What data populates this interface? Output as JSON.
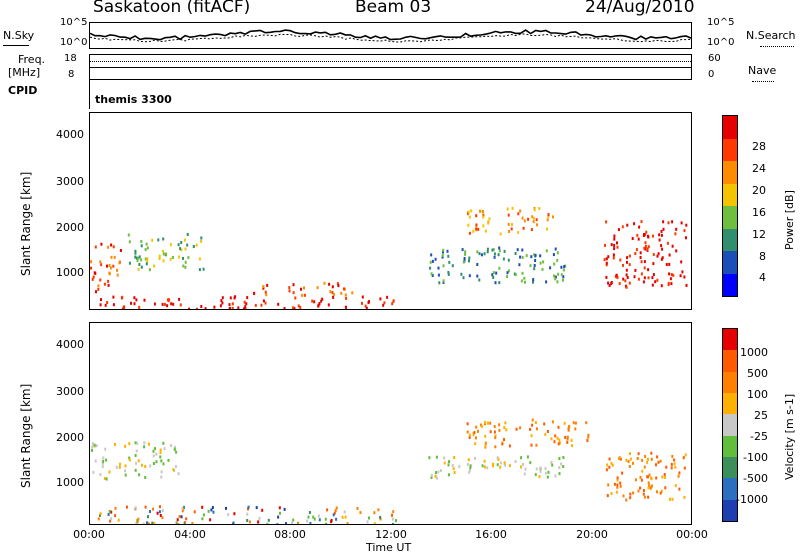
{
  "header": {
    "station": "Saskatoon (fitACF)",
    "beam": "Beam 03",
    "date": "24/Aug/2010"
  },
  "aux": {
    "nsky_label": "N.Sky",
    "nsearch_label": "N.Search",
    "scale_top_left": "10^5",
    "scale_bot_left": "10^0",
    "scale_top_right": "10^5",
    "scale_bot_right": "10^0",
    "freq_label_1": "Freq.",
    "freq_label_2": "[MHz]",
    "freq_top": "18",
    "freq_bot": "8",
    "nave_label": "Nave",
    "nave_top": "60",
    "nave_bot": "0",
    "cpid_label": "CPID",
    "cpid_value": "themis 3300"
  },
  "chart_data": [
    {
      "type": "heatmap",
      "title": "",
      "ylabel": "Slant Range [km]",
      "ylim": [
        180,
        4600
      ],
      "yticks": [
        "4000",
        "3000",
        "2000",
        "1000"
      ],
      "xlabel": "",
      "colorbar": {
        "label": "Power [dB]",
        "ticks": [
          "28",
          "24",
          "20",
          "16",
          "12",
          "8",
          "4"
        ],
        "colors": [
          "#0000ff",
          "#1a4fb8",
          "#2f8f6e",
          "#6fbf3f",
          "#f5c400",
          "#ff8c00",
          "#ff3a00",
          "#e60000"
        ]
      },
      "echo_bands": [
        {
          "t0": 0.3,
          "t1": 12.2,
          "r0": 200,
          "r1": 500,
          "level": 28
        },
        {
          "t0": 0.0,
          "t1": 1.2,
          "r0": 600,
          "r1": 1700,
          "level": 22
        },
        {
          "t0": 1.5,
          "t1": 4.5,
          "r0": 1100,
          "r1": 1900,
          "level": 12
        },
        {
          "t0": 6.5,
          "t1": 10.5,
          "r0": 500,
          "r1": 800,
          "level": 24
        },
        {
          "t0": 13.5,
          "t1": 19.0,
          "r0": 800,
          "r1": 1600,
          "level": 8
        },
        {
          "t0": 15.0,
          "t1": 18.5,
          "r0": 1900,
          "r1": 2500,
          "level": 20
        },
        {
          "t0": 20.5,
          "t1": 23.8,
          "r0": 700,
          "r1": 2200,
          "level": 26
        }
      ]
    },
    {
      "type": "heatmap",
      "title": "",
      "ylabel": "Slant Range [km]",
      "ylim": [
        180,
        4600
      ],
      "yticks": [
        "4000",
        "3000",
        "2000",
        "1000"
      ],
      "xlabel": "Time UT",
      "xticks": [
        "00:00",
        "04:00",
        "08:00",
        "12:00",
        "16:00",
        "20:00",
        "00:00"
      ],
      "colorbar": {
        "label": "Velocity [m s-1]",
        "ticks": [
          "1000",
          "500",
          "100",
          "25",
          "-25",
          "-100",
          "-500",
          "-1000"
        ],
        "colors": [
          "#1e3fb0",
          "#2a6fc0",
          "#3a8f5a",
          "#5fbf3a",
          "#c8c8c8",
          "#ffb000",
          "#ff8000",
          "#ff5a00",
          "#e60000"
        ]
      },
      "echo_bands": [
        {
          "t0": 0.3,
          "t1": 12.2,
          "r0": 200,
          "r1": 600,
          "level": "mixed"
        },
        {
          "t0": 0.0,
          "t1": 3.5,
          "r0": 1200,
          "r1": 2000,
          "level": 0
        },
        {
          "t0": 13.5,
          "t1": 19.0,
          "r0": 1200,
          "r1": 1700,
          "level": 0
        },
        {
          "t0": 15.0,
          "t1": 20.0,
          "r0": 1900,
          "r1": 2500,
          "level": -300
        },
        {
          "t0": 20.5,
          "t1": 23.8,
          "r0": 700,
          "r1": 1800,
          "level": -400
        }
      ]
    }
  ]
}
